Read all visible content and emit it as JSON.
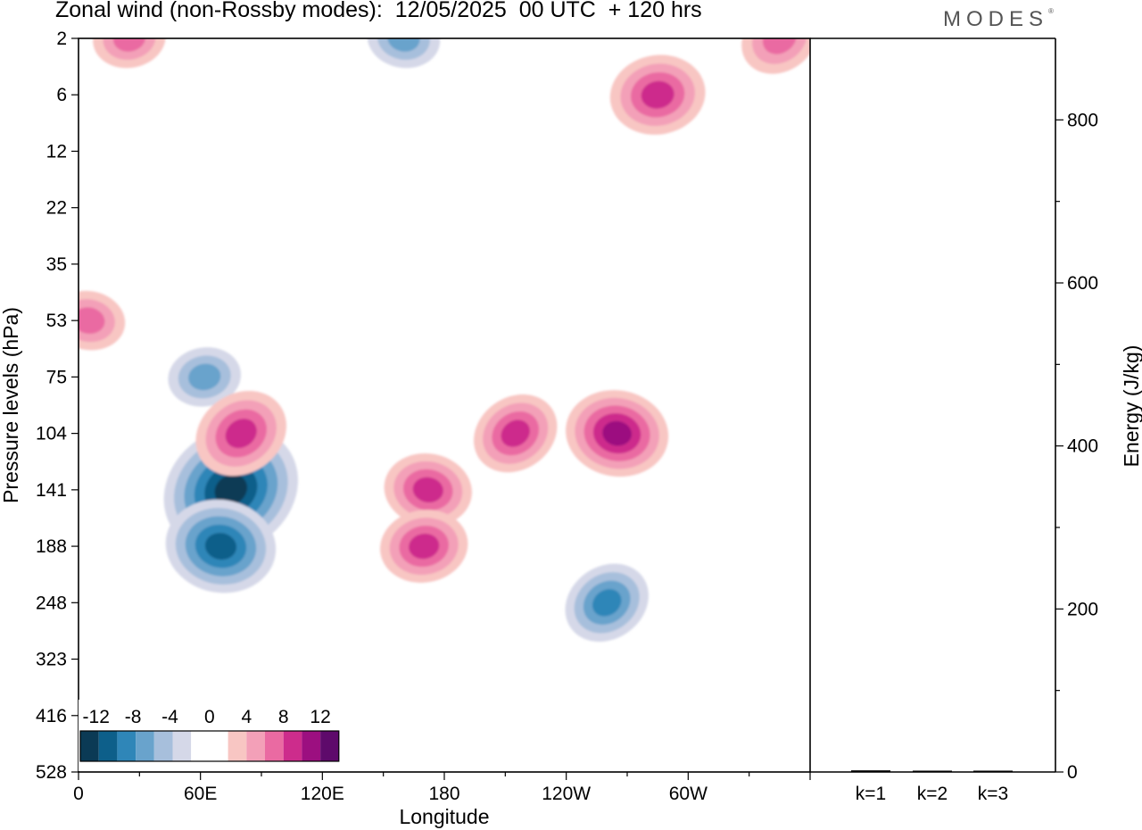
{
  "title": "Zonal wind (non-Rossby modes):  12/05/2025  00 UTC  + 120 hrs",
  "logo": "MODES",
  "colors": {
    "neg": [
      "#0b3a55",
      "#0d5f8a",
      "#2f86b8",
      "#69a3cc",
      "#a7bfdc",
      "#d5d8e8"
    ],
    "pos": [
      "#f8c6c3",
      "#f3a0b8",
      "#ea6aa2",
      "#cd2c8c",
      "#9c0f80",
      "#5e0a6b"
    ]
  },
  "chart_data": [
    {
      "type": "heatmap",
      "title": "Zonal wind (non-Rossby modes):  12/05/2025  00 UTC  + 120 hrs",
      "xlabel": "Longitude",
      "ylabel": "Pressure levels (hPa)",
      "x_ticks": [
        "0",
        "60E",
        "120E",
        "180",
        "120W",
        "60W"
      ],
      "y_ticks": [
        "2",
        "6",
        "12",
        "22",
        "35",
        "53",
        "75",
        "104",
        "141",
        "188",
        "248",
        "323",
        "416",
        "528"
      ],
      "colorbar_labels": [
        "-12",
        "-8",
        "-4",
        "0",
        "4",
        "8",
        "12"
      ],
      "features": [
        {
          "lon": 75,
          "level": "141",
          "value": -14
        },
        {
          "lon": 70,
          "level": "188",
          "value": -10
        },
        {
          "lon": 62,
          "level": "75",
          "value": -5
        },
        {
          "lon": 80,
          "level": "104",
          "value": 8
        },
        {
          "lon": 172,
          "level": "141",
          "value": 7
        },
        {
          "lon": 170,
          "level": "188",
          "value": 7
        },
        {
          "lon": 215,
          "level": "104",
          "value": 7
        },
        {
          "lon": 265,
          "level": "104",
          "value": 9
        },
        {
          "lon": 285,
          "level": "6",
          "value": 8
        },
        {
          "lon": 260,
          "level": "248",
          "value": -7
        },
        {
          "lon": 160,
          "level": "2",
          "value": -5
        },
        {
          "lon": 25,
          "level": "2",
          "value": 5
        },
        {
          "lon": 345,
          "level": "2",
          "value": 6
        },
        {
          "lon": 5,
          "level": "53",
          "value": 5
        }
      ]
    },
    {
      "type": "bar",
      "ylabel": "Energy (J/kg)",
      "categories": [
        "k=1",
        "k=2",
        "k=3"
      ],
      "values": [
        2,
        1.5,
        1
      ],
      "ylim": [
        0,
        900
      ],
      "y_ticks": [
        0,
        200,
        400,
        600,
        800
      ]
    }
  ]
}
